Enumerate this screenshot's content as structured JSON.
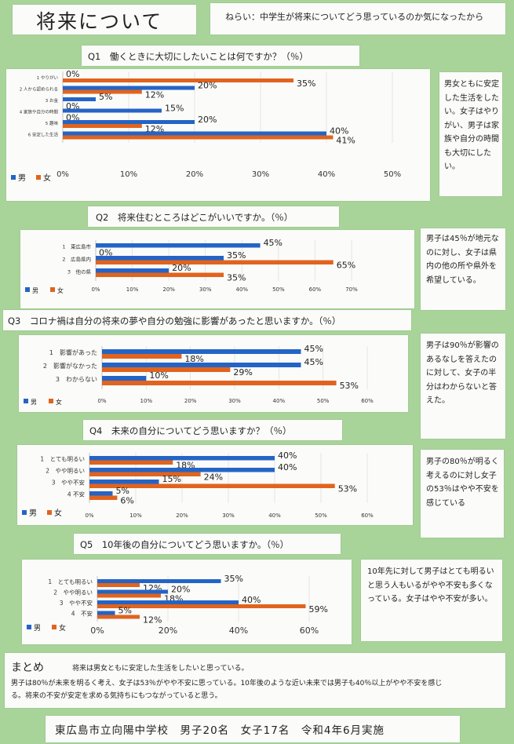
{
  "page": {
    "title": "将来について",
    "aim": "ねらい：中学生が将来についてどう思っているのか気になったから",
    "summary_heading": "まとめ",
    "summary_line1": "将来は男女ともに安定した生活をしたいと思っている。",
    "summary_line2": "男子は80％が未来を明るく考え、女子は53％がやや不安に思っている。10年後のような近い未来では男子も40％以上がやや不安を感じ",
    "summary_line3": "る。将来の不安が安定を求める気持ちにもつながっていると思う。",
    "footer": "東広島市立向陽中学校　男子20名　女子17名　令和4年6月実施"
  },
  "colors": {
    "male": "#2464c6",
    "female": "#e0641e",
    "background": "#a8d49a"
  },
  "legend": {
    "male": "男",
    "female": "女"
  },
  "comments": [
    "男女ともに安定した生活をしたい。女子はやりがい、男子は家族や自分の時間も大切にしたい。",
    "男子は45％が地元なのに対し、女子は県内の他の所や県外を希望している。",
    "男子は90％が影響のあるなしを答えたのに対して、女子の半分はわからないと答えた。",
    "男子の80％が明るく考えるのに対し女子の53％はやや不安を感じている",
    "10年先に対して男子はとても明るいと思う人もいるがやや不安も多くなっている。女子はやや不安が多い。"
  ],
  "chart_data": [
    {
      "type": "bar",
      "title": "Q1　働くときに大切にしたいことは何ですか？（％）",
      "categories": [
        "1 やりがい",
        "2 人から認められる",
        "3 お金",
        "4 家族や自分の時間",
        "5 趣味",
        "6 安定した生活"
      ],
      "series": [
        {
          "name": "男",
          "values": [
            0,
            20,
            5,
            15,
            20,
            40
          ]
        },
        {
          "name": "女",
          "values": [
            35,
            12,
            0,
            0,
            12,
            41
          ]
        }
      ],
      "xlim": [
        0,
        50
      ],
      "ticks": [
        "0%",
        "10%",
        "20%",
        "30%",
        "40%",
        "50%"
      ]
    },
    {
      "type": "bar",
      "title": "Q2　将来住むところはどこがいいですか。（％）",
      "categories": [
        "1　東広島市",
        "2　広島県内",
        "3　他の県"
      ],
      "series": [
        {
          "name": "男",
          "values": [
            45,
            35,
            20
          ]
        },
        {
          "name": "女",
          "values": [
            0,
            65,
            35
          ]
        }
      ],
      "xlim": [
        0,
        70
      ],
      "ticks": [
        "0%",
        "10%",
        "20%",
        "30%",
        "40%",
        "50%",
        "60%",
        "70%"
      ]
    },
    {
      "type": "bar",
      "title": "Q3　コロナ禍は自分の将来の夢や自分の勉強に影響があったと思いますか。（％）",
      "categories": [
        "1　影響があった",
        "2　影響がなかった",
        "3　わからない"
      ],
      "series": [
        {
          "name": "男",
          "values": [
            45,
            45,
            10
          ]
        },
        {
          "name": "女",
          "values": [
            18,
            29,
            53
          ]
        }
      ],
      "xlim": [
        0,
        60
      ],
      "ticks": [
        "0%",
        "10%",
        "20%",
        "30%",
        "40%",
        "50%",
        "60%"
      ]
    },
    {
      "type": "bar",
      "title": "Q4　未来の自分についてどう思いますか？（％）",
      "categories": [
        "1　とても明るい",
        "2　やや明るい",
        "3　やや不安",
        "4 不安"
      ],
      "series": [
        {
          "name": "男",
          "values": [
            40,
            40,
            15,
            5
          ]
        },
        {
          "name": "女",
          "values": [
            18,
            24,
            53,
            6
          ]
        }
      ],
      "xlim": [
        0,
        60
      ],
      "ticks": [
        "0%",
        "10%",
        "20%",
        "30%",
        "40%",
        "50%",
        "60%"
      ]
    },
    {
      "type": "bar",
      "title": "Q5　10年後の自分についてどう思いますか。（％）",
      "categories": [
        "1　とても明るい",
        "2　やや明るい",
        "3　やや不安",
        "4　不安"
      ],
      "series": [
        {
          "name": "男",
          "values": [
            35,
            20,
            40,
            5
          ]
        },
        {
          "name": "女",
          "values": [
            12,
            18,
            59,
            12
          ]
        }
      ],
      "xlim": [
        0,
        60
      ],
      "ticks": [
        "0%",
        "20%",
        "40%",
        "60%"
      ]
    }
  ]
}
